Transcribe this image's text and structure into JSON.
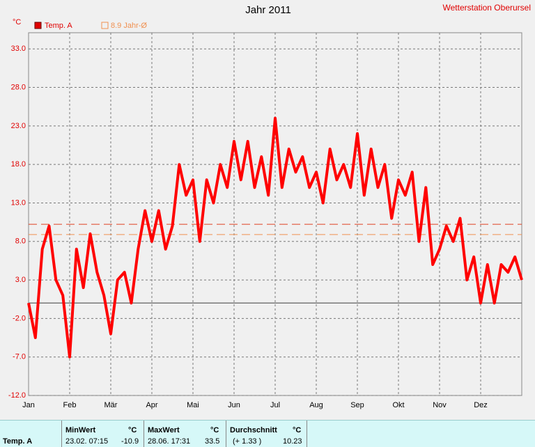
{
  "chart_data": {
    "type": "line",
    "title": "Jahr 2011",
    "station": "Wetterstation Oberursel",
    "y_label": "°C",
    "categories": [
      "Jan",
      null,
      null,
      null,
      null,
      null,
      "Feb",
      null,
      null,
      null,
      null,
      null,
      "Mär",
      null,
      null,
      null,
      null,
      null,
      "Apr",
      null,
      null,
      null,
      null,
      null,
      "Mai",
      null,
      null,
      null,
      null,
      null,
      "Jun",
      null,
      null,
      null,
      null,
      null,
      "Jul",
      null,
      null,
      null,
      null,
      null,
      "Aug",
      null,
      null,
      null,
      null,
      null,
      "Sep",
      null,
      null,
      null,
      null,
      null,
      "Okt",
      null,
      null,
      null,
      null,
      null,
      "Nov",
      null,
      null,
      null,
      null,
      null,
      "Dez",
      null,
      null,
      null,
      null,
      null,
      null
    ],
    "series": [
      {
        "name": "Temp. A",
        "color": "#ff0000",
        "values": [
          0,
          -4.5,
          7,
          10,
          3,
          1,
          -7,
          7,
          2,
          9,
          4,
          1,
          -4,
          3,
          4,
          0,
          7,
          12,
          8,
          12,
          7,
          10,
          18,
          14,
          16,
          8,
          16,
          13,
          18,
          15,
          21,
          16,
          21,
          15,
          19,
          14,
          24,
          15,
          20,
          17,
          19,
          15,
          17,
          13,
          20,
          16,
          18,
          15,
          22,
          14,
          20,
          15,
          18,
          11,
          16,
          14,
          17,
          8,
          15,
          5,
          7,
          10,
          8,
          11,
          3,
          6,
          0,
          5,
          0,
          5,
          4,
          6,
          3
        ]
      }
    ],
    "reference_lines": [
      {
        "value": 10.23,
        "color": "#e04020"
      },
      {
        "name": "8.9 Jahr-Ø",
        "value": 8.9,
        "color": "#f09050"
      }
    ],
    "ylim": [
      -12,
      35.1
    ],
    "yticks": [
      {
        "value": -12,
        "label": "-12.0"
      },
      {
        "value": -7,
        "label": "-7.0"
      },
      {
        "value": -2,
        "label": "-2.0"
      },
      {
        "value": 3,
        "label": "3.0"
      },
      {
        "value": 8,
        "label": "8.0"
      },
      {
        "value": 13,
        "label": "13.0"
      },
      {
        "value": 18,
        "label": "18.0"
      },
      {
        "value": 23,
        "label": "23.0"
      },
      {
        "value": 28,
        "label": "28.0"
      },
      {
        "value": 33,
        "label": "33.0"
      }
    ],
    "grid": true
  },
  "stats": {
    "headers": [
      "MinWert",
      "°C",
      "MaxWert",
      "°C",
      "Durchschnitt",
      "°C"
    ],
    "row": [
      "Temp. A",
      "23.02.  07:15",
      "-10.9",
      "28.06.  17:31",
      "33.5",
      "(+ 1.33 )",
      "10.23"
    ]
  }
}
